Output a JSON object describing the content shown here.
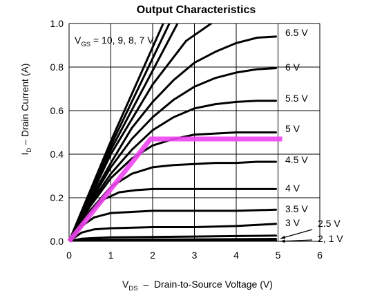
{
  "chart_data": {
    "type": "line",
    "title": "Output Characteristics",
    "xlabel": {
      "main": "V",
      "sub": "DS",
      "rest": "  –  Drain-to-Source Voltage (V)"
    },
    "ylabel": {
      "main": "I",
      "sub": "D",
      "rest": " – Drain Current (A)"
    },
    "xlim": [
      0,
      6
    ],
    "ylim": [
      0,
      1.0
    ],
    "x_ticks": [
      "0",
      "1",
      "2",
      "3",
      "4",
      "5",
      "6"
    ],
    "y_ticks": [
      "0.0",
      "0.2",
      "0.4",
      "0.6",
      "0.8",
      "1.0"
    ],
    "grid": true,
    "high_vgs_annotation": {
      "main": "V",
      "sub": "GS",
      "rest": " = 10, 9, 8, 7 V"
    },
    "series": [
      {
        "name": "10 V",
        "x": [
          0,
          1.0,
          2.3
        ],
        "y": [
          0,
          0.46,
          1.02
        ]
      },
      {
        "name": "9 V",
        "x": [
          0,
          1.0,
          2.45
        ],
        "y": [
          0,
          0.44,
          1.02
        ]
      },
      {
        "name": "8 V",
        "x": [
          0,
          1.0,
          2.65
        ],
        "y": [
          0,
          0.42,
          1.02
        ]
      },
      {
        "name": "7 V",
        "x": [
          0,
          1.0,
          2.0,
          2.8,
          3.55
        ],
        "y": [
          0,
          0.4,
          0.72,
          0.92,
          1.02
        ]
      },
      {
        "name": "6.5 V",
        "x": [
          0,
          0.5,
          1.0,
          1.5,
          2.0,
          2.5,
          3.0,
          3.5,
          4.0,
          4.5,
          4.95
        ],
        "y": [
          0,
          0.19,
          0.36,
          0.52,
          0.64,
          0.74,
          0.82,
          0.87,
          0.91,
          0.935,
          0.94
        ]
      },
      {
        "name": "6 V",
        "x": [
          0,
          0.5,
          1.0,
          1.5,
          2.0,
          2.5,
          3.0,
          3.5,
          4.0,
          4.5,
          4.95
        ],
        "y": [
          0,
          0.18,
          0.34,
          0.47,
          0.57,
          0.65,
          0.71,
          0.75,
          0.775,
          0.79,
          0.795
        ]
      },
      {
        "name": "5.5 V",
        "x": [
          0,
          0.5,
          1.0,
          1.5,
          2.0,
          2.5,
          3.0,
          3.5,
          4.0,
          4.5,
          4.95
        ],
        "y": [
          0,
          0.17,
          0.31,
          0.42,
          0.51,
          0.57,
          0.61,
          0.63,
          0.64,
          0.645,
          0.645
        ]
      },
      {
        "name": "5 V",
        "x": [
          0,
          0.5,
          1.0,
          1.5,
          2.0,
          2.5,
          3.0,
          3.5,
          4.0,
          4.5,
          4.95
        ],
        "y": [
          0,
          0.16,
          0.29,
          0.38,
          0.44,
          0.47,
          0.49,
          0.495,
          0.5,
          0.5,
          0.5
        ]
      },
      {
        "name": "4.5 V",
        "x": [
          0,
          0.5,
          1.0,
          1.5,
          2.0,
          2.5,
          3.0,
          3.5,
          4.0,
          4.5,
          4.95
        ],
        "y": [
          0,
          0.14,
          0.25,
          0.31,
          0.34,
          0.35,
          0.355,
          0.36,
          0.36,
          0.365,
          0.365
        ]
      },
      {
        "name": "4 V",
        "x": [
          0,
          0.4,
          0.8,
          1.2,
          1.6,
          2.0,
          3.0,
          4.0,
          4.95
        ],
        "y": [
          0,
          0.11,
          0.19,
          0.225,
          0.235,
          0.24,
          0.24,
          0.24,
          0.24
        ]
      },
      {
        "name": "3.5 V",
        "x": [
          0,
          0.3,
          0.6,
          1.0,
          1.5,
          2.0,
          3.0,
          4.0,
          4.95
        ],
        "y": [
          0,
          0.07,
          0.11,
          0.13,
          0.135,
          0.14,
          0.14,
          0.14,
          0.145
        ]
      },
      {
        "name": "3 V",
        "x": [
          0,
          0.3,
          0.6,
          1.0,
          2.0,
          3.0,
          4.0,
          4.95
        ],
        "y": [
          0,
          0.04,
          0.055,
          0.06,
          0.065,
          0.065,
          0.07,
          0.08
        ]
      },
      {
        "name": "2.5 V",
        "x": [
          0,
          0.3,
          1.0,
          2.0,
          3.0,
          4.0,
          4.95
        ],
        "y": [
          0,
          0.012,
          0.018,
          0.02,
          0.022,
          0.024,
          0.026
        ]
      },
      {
        "name": "2 V",
        "x": [
          0,
          0.3,
          1.0,
          2.0,
          3.0,
          4.0,
          4.95
        ],
        "y": [
          0,
          0.005,
          0.007,
          0.008,
          0.009,
          0.01,
          0.011
        ]
      },
      {
        "name": "1 V",
        "x": [
          0,
          1.0,
          2.0,
          3.0,
          4.0,
          4.95
        ],
        "y": [
          0,
          0.002,
          0.003,
          0.003,
          0.004,
          0.004
        ]
      }
    ],
    "curve_labels": [
      "6.5 V",
      "6 V",
      "5.5 V",
      "5 V",
      "4.5 V",
      "4 V",
      "3.5 V",
      "3 V",
      "2.5 V",
      "2, 1 V"
    ],
    "highlight": {
      "color": "#ee44ee",
      "x": [
        0,
        1.0,
        1.95,
        5.1
      ],
      "y": [
        0,
        0.24,
        0.47,
        0.47
      ]
    },
    "colors": {
      "curves": "#000000",
      "grid": "#000000",
      "highlight": "#ee44ee"
    }
  }
}
